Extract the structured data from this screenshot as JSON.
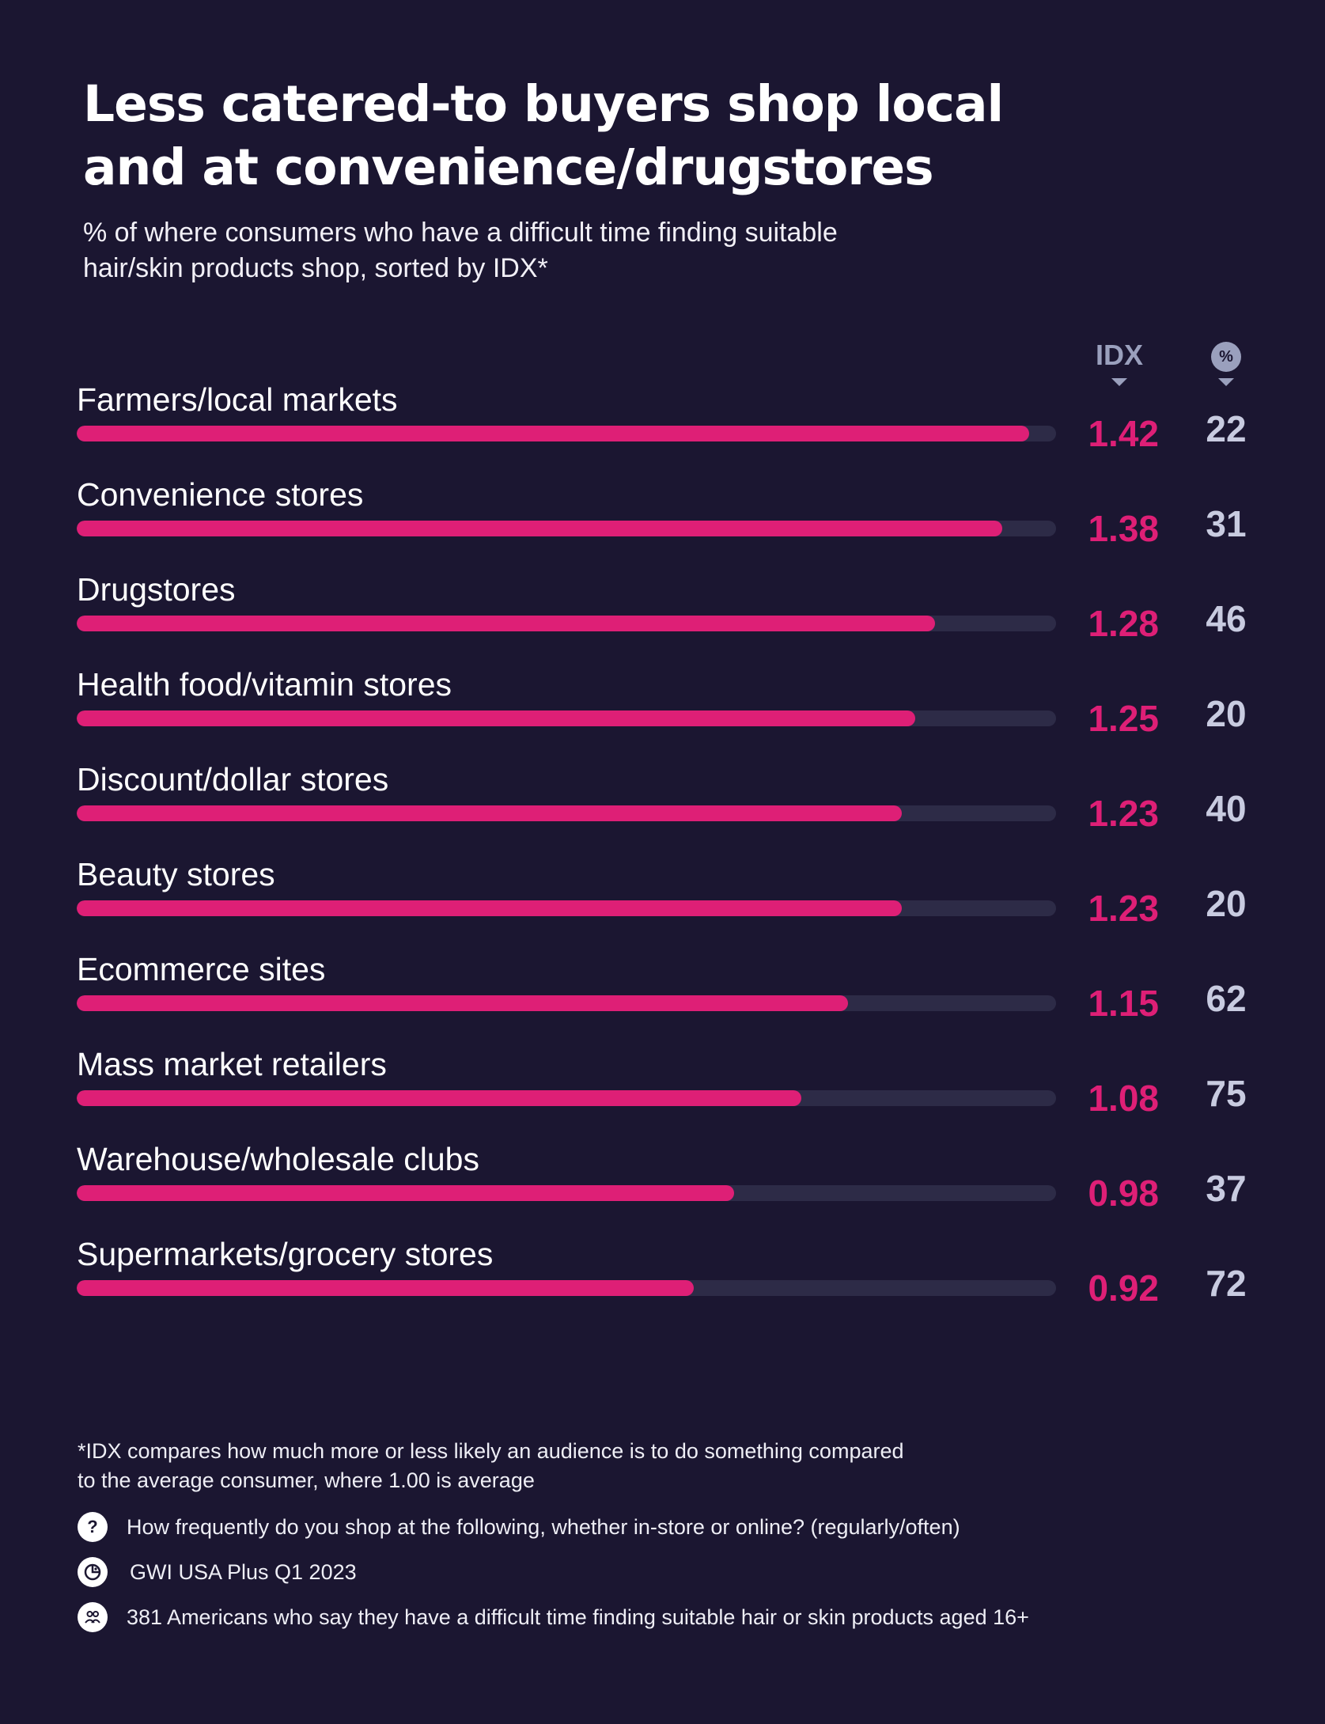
{
  "header": {
    "title_line1": "Less catered-to buyers shop local",
    "title_line2": "and at convenience/drugstores",
    "subtitle_line1": "% of where consumers who have a difficult time finding suitable",
    "subtitle_line2": "hair/skin products shop, sorted by IDX*"
  },
  "columns": {
    "idx_label": "IDX",
    "pct_label": "%"
  },
  "chart_data": {
    "type": "bar",
    "orientation": "horizontal",
    "title": "Less catered-to buyers shop local and at convenience/drugstores",
    "xlabel": "IDX",
    "ylabel": "",
    "xlim": [
      0,
      1.46
    ],
    "categories": [
      "Farmers/local markets",
      "Convenience stores",
      "Drugstores",
      "Health food/vitamin stores",
      "Discount/dollar stores",
      "Beauty stores",
      "Ecommerce sites",
      "Mass market retailers",
      "Warehouse/wholesale clubs",
      "Supermarkets/grocery stores"
    ],
    "series": [
      {
        "name": "IDX",
        "values": [
          1.42,
          1.38,
          1.28,
          1.25,
          1.23,
          1.23,
          1.15,
          1.08,
          0.98,
          0.92
        ]
      },
      {
        "name": "%",
        "values": [
          22,
          31,
          46,
          20,
          40,
          20,
          62,
          75,
          37,
          72
        ]
      }
    ],
    "idx_labels": [
      "1.42",
      "1.38",
      "1.28",
      "1.25",
      "1.23",
      "1.23",
      "1.15",
      "1.08",
      "0.98",
      "0.92"
    ],
    "pct_labels": [
      "22",
      "31",
      "46",
      "20",
      "40",
      "20",
      "62",
      "75",
      "37",
      "72"
    ],
    "colors": {
      "bar": "#de1f76",
      "track": "#2d2b47",
      "idx_text": "#de1f76",
      "pct_text": "#c8cbe0",
      "background": "#1b1631"
    }
  },
  "footer": {
    "note_line1": "*IDX compares how much more or less likely an audience is to do something compared",
    "note_line2": "to the average consumer, where 1.00 is average",
    "question_icon": "?",
    "question": "How frequently do you shop at the following, whether in-store or online? (regularly/often)",
    "source": "GWI USA Plus Q1 2023",
    "sample": "381 Americans who say they have a difficult time finding suitable hair or skin products aged 16+"
  }
}
